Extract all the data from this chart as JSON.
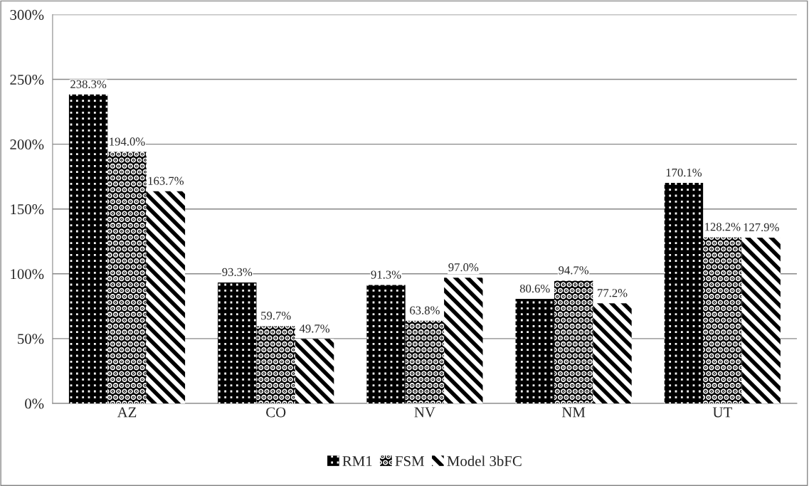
{
  "chart_data": {
    "type": "bar",
    "categories": [
      "AZ",
      "CO",
      "NV",
      "NM",
      "UT"
    ],
    "series": [
      {
        "name": "RM1",
        "color": "#000000",
        "values": [
          238.3,
          93.3,
          91.3,
          80.6,
          170.1
        ],
        "value_labels": [
          "238.3%",
          "93.3%",
          "91.3%",
          "80.6%",
          "170.1%"
        ]
      },
      {
        "name": "FSM",
        "color": "#000000",
        "values": [
          194.0,
          59.7,
          63.8,
          94.7,
          128.2
        ],
        "value_labels": [
          "194.0%",
          "59.7%",
          "63.8%",
          "94.7%",
          "128.2%"
        ]
      },
      {
        "name": "Model 3bFC",
        "color": "#000000",
        "values": [
          163.7,
          49.7,
          97.0,
          77.2,
          127.9
        ],
        "value_labels": [
          "163.7%",
          "49.7%",
          "97.0%",
          "77.2%",
          "127.9%"
        ]
      }
    ],
    "ylim": [
      0,
      300
    ],
    "yticks": [
      {
        "value": 0,
        "label": "0%"
      },
      {
        "value": 50,
        "label": "50%"
      },
      {
        "value": 100,
        "label": "100%"
      },
      {
        "value": 150,
        "label": "150%"
      },
      {
        "value": 200,
        "label": "200%"
      },
      {
        "value": 250,
        "label": "250%"
      },
      {
        "value": 300,
        "label": "300%"
      }
    ],
    "grid": "y",
    "legend": "bottom"
  }
}
